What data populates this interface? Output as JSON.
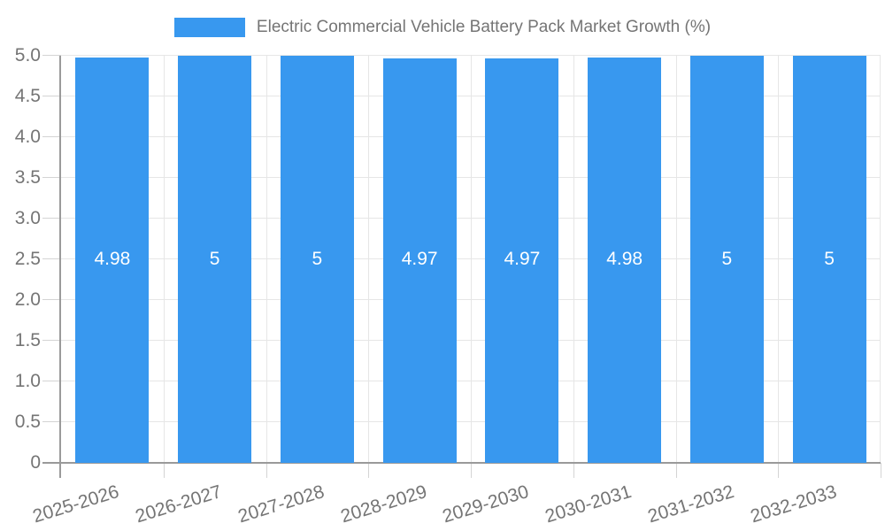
{
  "chart_data": {
    "type": "bar",
    "title": "Electric Commercial Vehicle Battery Pack Market Growth (%)",
    "categories": [
      "2025-2026",
      "2026-2027",
      "2027-2028",
      "2028-2029",
      "2029-2030",
      "2030-2031",
      "2031-2032",
      "2032-2033"
    ],
    "values": [
      4.98,
      5,
      5,
      4.97,
      4.97,
      4.98,
      5,
      5
    ],
    "value_labels": [
      "4.98",
      "5",
      "5",
      "4.97",
      "4.97",
      "4.98",
      "5",
      "5"
    ],
    "ylim": [
      0,
      5
    ],
    "ytick_values": [
      0,
      0.5,
      1,
      1.5,
      2,
      2.5,
      3,
      3.5,
      4,
      4.5,
      5
    ],
    "ytick_labels": [
      "0",
      "0.5",
      "1.0",
      "1.5",
      "2.0",
      "2.5",
      "3.0",
      "3.5",
      "4.0",
      "4.5",
      "5.0"
    ],
    "grid": true,
    "legend_position": "top",
    "colors": {
      "bar": "#3898ef",
      "bar_value_text": "#ffffff",
      "axis_text": "#757575",
      "gridline": "#e6e6e6",
      "tick": "#d4d4d4",
      "axis_line": "#9a9a9a"
    }
  }
}
